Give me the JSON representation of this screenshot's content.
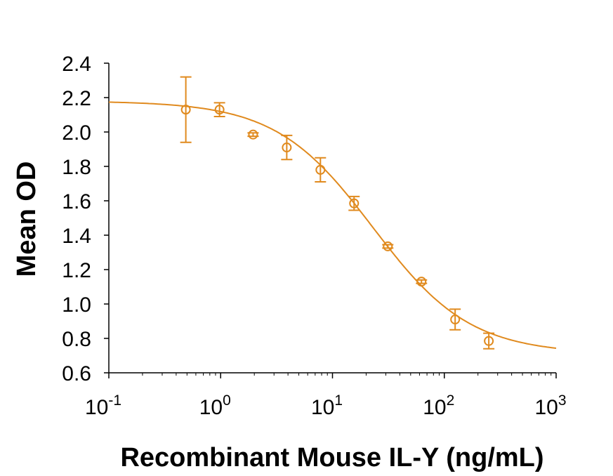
{
  "chart_data": {
    "type": "scatter",
    "title": "",
    "xlabel": "Recombinant Mouse IL-Y (ng/mL)",
    "ylabel": "Mean OD",
    "x_scale": "log",
    "xlim": [
      0.1,
      1000
    ],
    "ylim": [
      0.6,
      2.4
    ],
    "x_ticks": [
      {
        "base": "10",
        "exp": "-1",
        "value": 0.1
      },
      {
        "base": "10",
        "exp": "0",
        "value": 1
      },
      {
        "base": "10",
        "exp": "1",
        "value": 10
      },
      {
        "base": "10",
        "exp": "2",
        "value": 100
      },
      {
        "base": "10",
        "exp": "3",
        "value": 1000
      }
    ],
    "y_ticks": [
      "0.6",
      "0.8",
      "1.0",
      "1.2",
      "1.4",
      "1.6",
      "1.8",
      "2.0",
      "2.2",
      "2.4"
    ],
    "grid": false,
    "color": "#E08A1E",
    "points": [
      {
        "x": 0.488,
        "y": 2.13,
        "err_hi": 2.32,
        "err_lo": 1.94
      },
      {
        "x": 0.977,
        "y": 2.13,
        "err_hi": 2.17,
        "err_lo": 2.09
      },
      {
        "x": 1.95,
        "y": 1.985,
        "err_hi": 1.995,
        "err_lo": 1.975
      },
      {
        "x": 3.9,
        "y": 1.91,
        "err_hi": 1.98,
        "err_lo": 1.84
      },
      {
        "x": 7.8,
        "y": 1.78,
        "err_hi": 1.85,
        "err_lo": 1.71
      },
      {
        "x": 15.6,
        "y": 1.585,
        "err_hi": 1.625,
        "err_lo": 1.545
      },
      {
        "x": 31.25,
        "y": 1.335,
        "err_hi": 1.345,
        "err_lo": 1.325
      },
      {
        "x": 62.5,
        "y": 1.13,
        "err_hi": 1.14,
        "err_lo": 1.12
      },
      {
        "x": 125,
        "y": 0.91,
        "err_hi": 0.97,
        "err_lo": 0.85
      },
      {
        "x": 250,
        "y": 0.785,
        "err_hi": 0.83,
        "err_lo": 0.74
      }
    ],
    "fit": {
      "model": "4PL",
      "top": 2.18,
      "bottom": 0.71,
      "ec50": 23,
      "hill": 1.0
    }
  }
}
